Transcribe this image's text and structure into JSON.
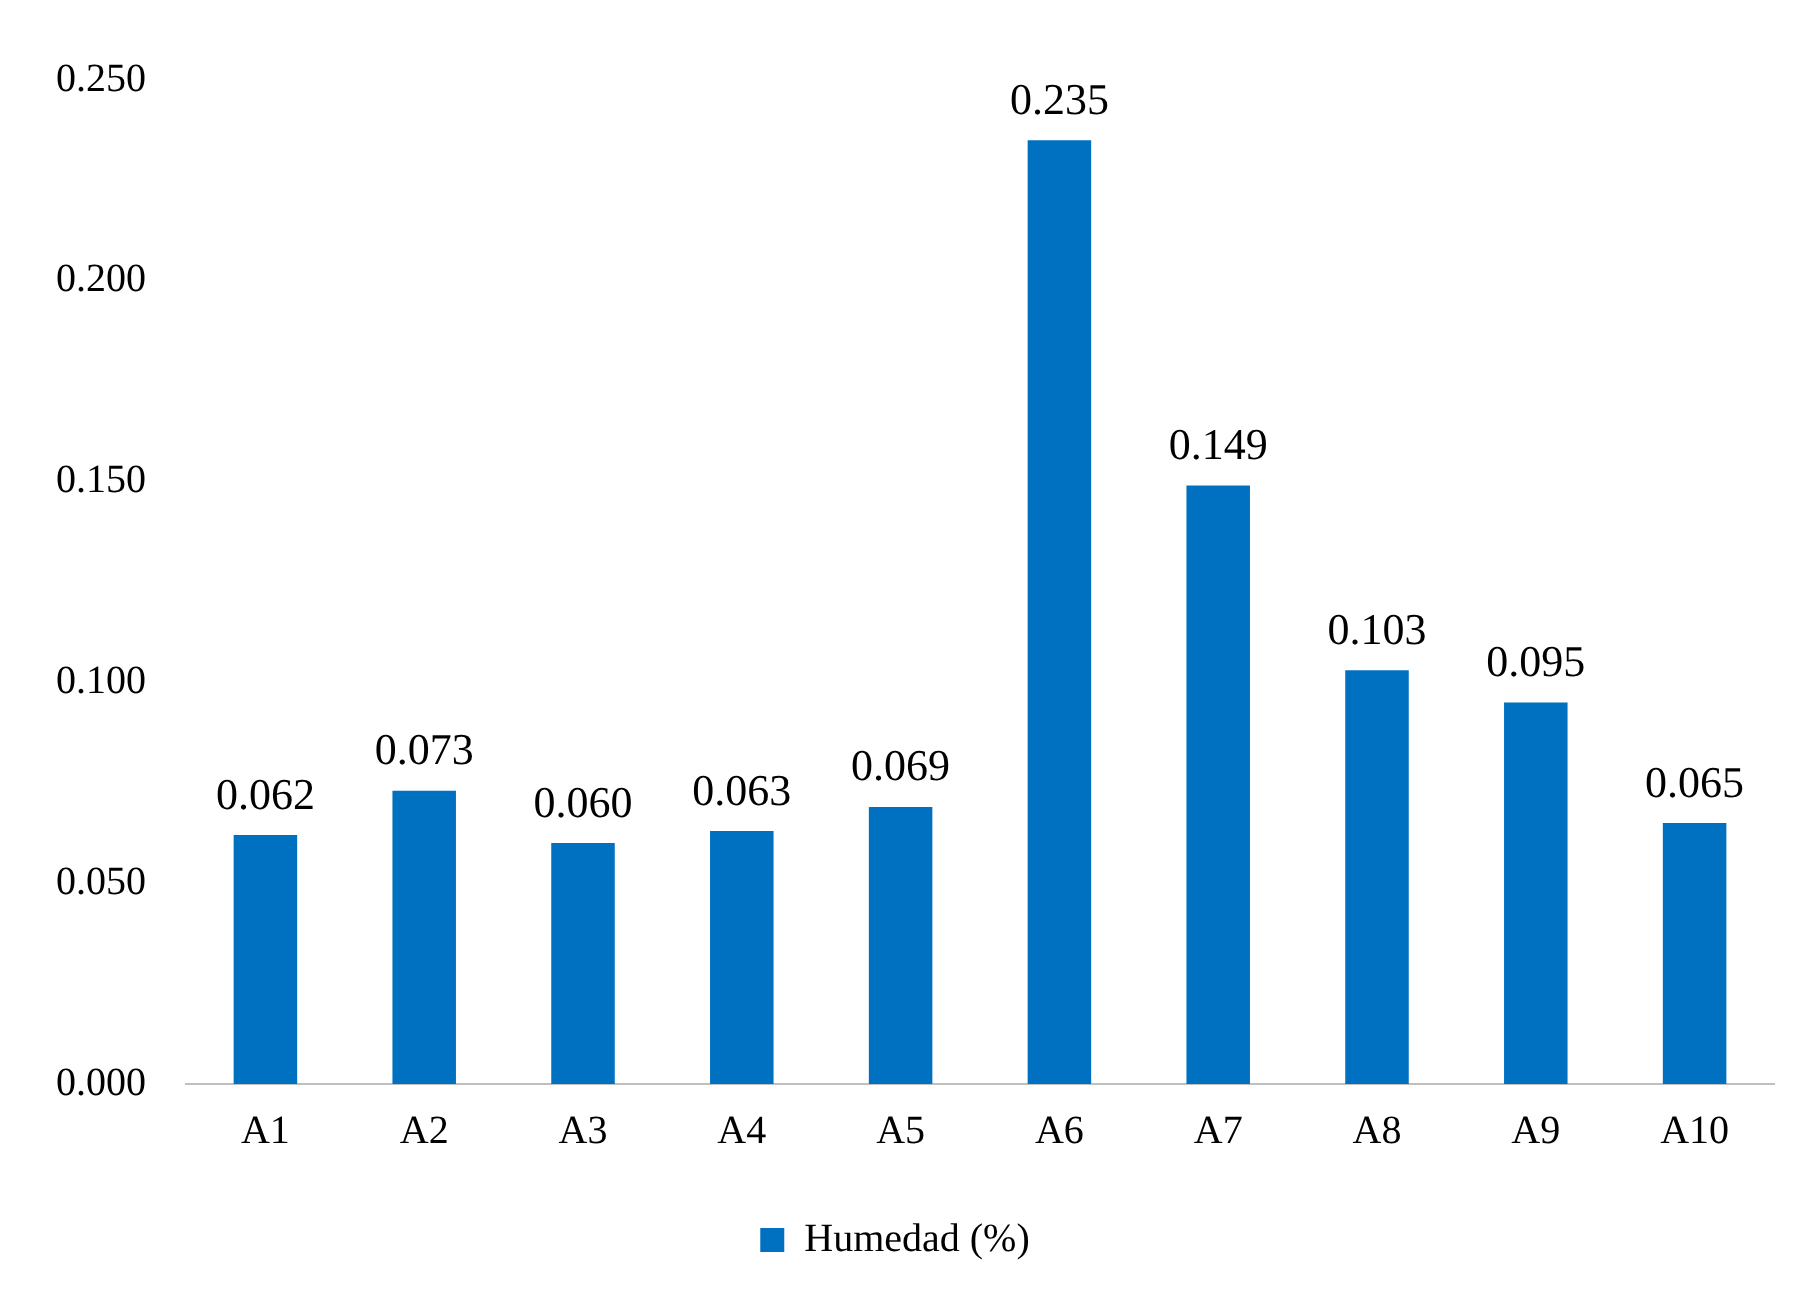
{
  "chart_data": {
    "type": "bar",
    "categories": [
      "A1",
      "A2",
      "A3",
      "A4",
      "A5",
      "A6",
      "A7",
      "A8",
      "A9",
      "A10"
    ],
    "series": [
      {
        "name": "Humedad (%)",
        "color": "#0070c0",
        "values": [
          0.062,
          0.073,
          0.06,
          0.063,
          0.069,
          0.235,
          0.149,
          0.103,
          0.095,
          0.065
        ],
        "value_labels": [
          "0.062",
          "0.073",
          "0.060",
          "0.063",
          "0.069",
          "0.235",
          "0.149",
          "0.103",
          "0.095",
          "0.065"
        ]
      }
    ],
    "ylim": [
      0,
      0.25
    ],
    "yticks": [
      {
        "value": 0,
        "label": "0.000"
      },
      {
        "value": 0.05,
        "label": "0.050"
      },
      {
        "value": 0.1,
        "label": "0.100"
      },
      {
        "value": 0.15,
        "label": "0.150"
      },
      {
        "value": 0.2,
        "label": "0.200"
      },
      {
        "value": 0.25,
        "label": "0.250"
      }
    ],
    "grid": false,
    "legend": "bottom"
  }
}
